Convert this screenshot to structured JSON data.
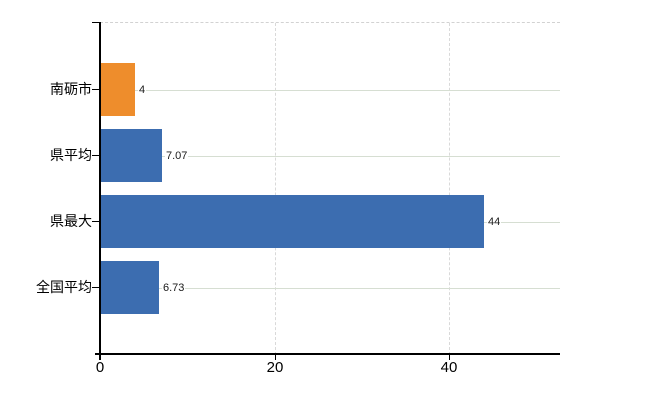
{
  "chart_data": {
    "type": "bar",
    "orientation": "horizontal",
    "categories": [
      "南砺市",
      "県平均",
      "県最大",
      "全国平均"
    ],
    "values": [
      4,
      7.07,
      44,
      6.73
    ],
    "value_labels": [
      "4",
      "7.07",
      "44",
      "6.73"
    ],
    "bar_colors": [
      "#ee8d2c",
      "#3c6db0",
      "#3c6db0",
      "#3c6db0"
    ],
    "x_tick_labels": [
      "0",
      "20",
      "40"
    ],
    "x_tick_values": [
      0,
      20,
      40
    ],
    "xlim": [
      0,
      52.7
    ],
    "grid": true,
    "legend_position": "none",
    "background": "#ffffff"
  },
  "style": {
    "bar_highlight": "#ee8d2c",
    "bar_default": "#3c6db0",
    "hgrid_color": "#d6ded2",
    "vgrid_color": "#d9d9d9",
    "axis_color": "#000000",
    "background": "#ffffff"
  }
}
